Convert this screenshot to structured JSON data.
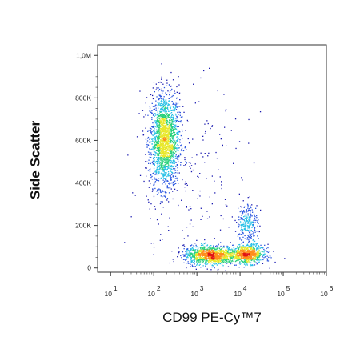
{
  "chart_data": {
    "type": "scatter",
    "subtype": "flow-cytometry-density-dot-plot",
    "xlabel": "CD99 PE-Cy™7",
    "ylabel": "Side Scatter",
    "x_scale": "log",
    "x_range": [
      5,
      1000000
    ],
    "x_ticks": [
      {
        "value": 10,
        "label": "10",
        "exp": "1"
      },
      {
        "value": 100,
        "label": "10",
        "exp": "2"
      },
      {
        "value": 1000,
        "label": "10",
        "exp": "3"
      },
      {
        "value": 10000,
        "label": "10",
        "exp": "4"
      },
      {
        "value": 100000,
        "label": "10",
        "exp": "5"
      },
      {
        "value": 1000000,
        "label": "10",
        "exp": "6"
      }
    ],
    "y_scale": "linear",
    "y_range": [
      -20000,
      1050000
    ],
    "y_ticks": [
      {
        "value": 0,
        "label": "0"
      },
      {
        "value": 200000,
        "label": "200K"
      },
      {
        "value": 400000,
        "label": "400K"
      },
      {
        "value": 600000,
        "label": "600K"
      },
      {
        "value": 800000,
        "label": "800K"
      },
      {
        "value": 1000000,
        "label": "1,0M"
      }
    ],
    "grid": false,
    "legend": "none",
    "density_colormap": [
      "#1a1ab0",
      "#2a55e0",
      "#27c0e6",
      "#28d17a",
      "#e8e82a",
      "#ff8c1a",
      "#e01414"
    ],
    "populations": [
      {
        "cd99": 180,
        "ssc": 600000,
        "x_sd_decades": 0.17,
        "y_sd": 110000,
        "weight": 0.45
      },
      {
        "cd99": 2000,
        "ssc": 60000,
        "x_sd_decades": 0.3,
        "y_sd": 22000,
        "weight": 0.26
      },
      {
        "cd99": 15000,
        "ssc": 65000,
        "x_sd_decades": 0.2,
        "y_sd": 22000,
        "weight": 0.18
      },
      {
        "cd99": 15000,
        "ssc": 210000,
        "x_sd_decades": 0.12,
        "y_sd": 45000,
        "weight": 0.06
      },
      {
        "cd99": 600,
        "ssc": 400000,
        "x_sd_decades": 0.7,
        "y_sd": 250000,
        "weight": 0.05
      }
    ]
  }
}
